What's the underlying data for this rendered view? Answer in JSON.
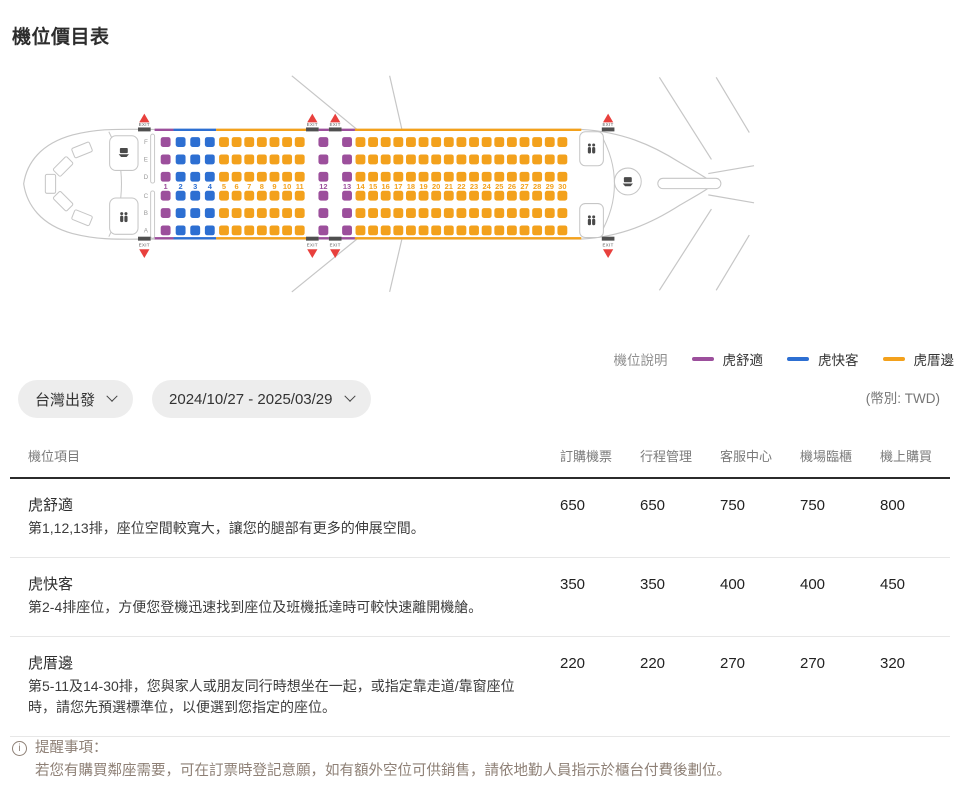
{
  "page": {
    "title": "機位價目表"
  },
  "legend": {
    "label": "機位說明",
    "items": [
      {
        "name": "虎舒適",
        "color": "#9c4f9c"
      },
      {
        "name": "虎快客",
        "color": "#2d6fd2"
      },
      {
        "name": "虎厝邊",
        "color": "#f3a11c"
      }
    ]
  },
  "filters": {
    "origin": "台灣出發",
    "date_range": "2024/10/27 - 2025/03/29",
    "currency_note": "(幣別: TWD)"
  },
  "table": {
    "columns": [
      "機位項目",
      "訂購機票",
      "行程管理",
      "客服中心",
      "機場臨櫃",
      "機上購買"
    ],
    "rows": [
      {
        "name": "虎舒適",
        "description": "第1,12,13排，座位空間較寬大，讓您的腿部有更多的伸展空間。",
        "prices": [
          "650",
          "650",
          "750",
          "750",
          "800"
        ]
      },
      {
        "name": "虎快客",
        "description": "第2-4排座位，方便您登機迅速找到座位及班機抵達時可較快速離開機艙。",
        "prices": [
          "350",
          "350",
          "400",
          "400",
          "450"
        ]
      },
      {
        "name": "虎厝邊",
        "description": "第5-11及14-30排，您與家人或朋友同行時想坐在一起，或指定靠走道/靠窗座位時，請您先預選標準位，以便選到您指定的座位。",
        "prices": [
          "220",
          "220",
          "270",
          "270",
          "320"
        ]
      }
    ]
  },
  "note": {
    "title": "提醒事項：",
    "body": "若您有購買鄰座需要，可在訂票時登記意願，如有額外空位可供銷售，請依地勤人員指示於櫃台付費後劃位。"
  },
  "seatmap": {
    "exit_label": "EXIT",
    "letters": [
      "F",
      "E",
      "D",
      "C",
      "B",
      "A"
    ],
    "colors": {
      "comfort": "#9c4f9c",
      "fast": "#2d6fd2",
      "neighbor": "#f3a11c",
      "outline": "#c6c6c6",
      "exit_red": "#e8403d",
      "exit_bar": "#4f4f4f",
      "icon": "#4a4a4a",
      "letter": "#9a9a9a",
      "exit_text": "#888888"
    },
    "rows": [
      {
        "num": "1",
        "cat": "comfort"
      },
      {
        "num": "2",
        "cat": "fast"
      },
      {
        "num": "3",
        "cat": "fast"
      },
      {
        "num": "4",
        "cat": "fast"
      },
      {
        "num": "5",
        "cat": "neighbor"
      },
      {
        "num": "6",
        "cat": "neighbor"
      },
      {
        "num": "7",
        "cat": "neighbor"
      },
      {
        "num": "8",
        "cat": "neighbor"
      },
      {
        "num": "9",
        "cat": "neighbor"
      },
      {
        "num": "10",
        "cat": "neighbor"
      },
      {
        "num": "11",
        "cat": "neighbor"
      },
      {
        "num": "12",
        "cat": "comfort"
      },
      {
        "num": "13",
        "cat": "comfort"
      },
      {
        "num": "14",
        "cat": "neighbor"
      },
      {
        "num": "15",
        "cat": "neighbor"
      },
      {
        "num": "16",
        "cat": "neighbor"
      },
      {
        "num": "17",
        "cat": "neighbor"
      },
      {
        "num": "18",
        "cat": "neighbor"
      },
      {
        "num": "19",
        "cat": "neighbor"
      },
      {
        "num": "20",
        "cat": "neighbor"
      },
      {
        "num": "21",
        "cat": "neighbor"
      },
      {
        "num": "22",
        "cat": "neighbor"
      },
      {
        "num": "23",
        "cat": "neighbor"
      },
      {
        "num": "24",
        "cat": "neighbor"
      },
      {
        "num": "25",
        "cat": "neighbor"
      },
      {
        "num": "26",
        "cat": "neighbor"
      },
      {
        "num": "27",
        "cat": "neighbor"
      },
      {
        "num": "28",
        "cat": "neighbor"
      },
      {
        "num": "29",
        "cat": "neighbor"
      },
      {
        "num": "30",
        "cat": "neighbor"
      }
    ]
  }
}
